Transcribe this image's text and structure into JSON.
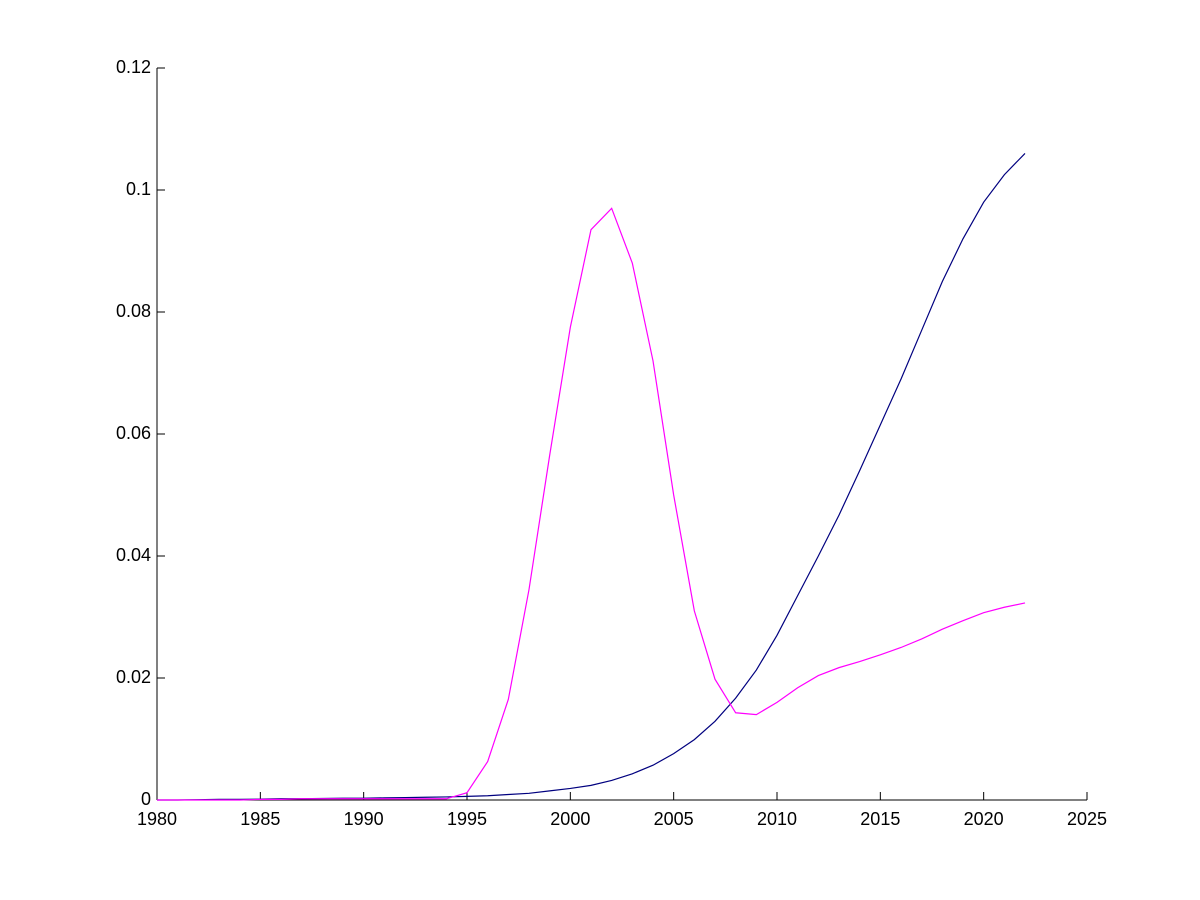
{
  "chart_data": {
    "type": "line",
    "x": [
      1980,
      1981,
      1982,
      1983,
      1984,
      1985,
      1986,
      1987,
      1988,
      1989,
      1990,
      1991,
      1992,
      1993,
      1994,
      1995,
      1996,
      1997,
      1998,
      1999,
      2000,
      2001,
      2002,
      2003,
      2004,
      2005,
      2006,
      2007,
      2008,
      2009,
      2010,
      2011,
      2012,
      2013,
      2014,
      2015,
      2016,
      2017,
      2018,
      2019,
      2020,
      2021,
      2022
    ],
    "series": [
      {
        "color": "#00007f",
        "values": [
          0,
          0,
          5e-05,
          0.0001,
          0.0001,
          0.00015,
          0.0002,
          0.0002,
          0.00025,
          0.0003,
          0.0003,
          0.00035,
          0.0004,
          0.00045,
          0.0005,
          0.0006,
          0.0007,
          0.0009,
          0.0011,
          0.0015,
          0.0019,
          0.0024,
          0.0032,
          0.0043,
          0.0057,
          0.0076,
          0.0099,
          0.0129,
          0.0167,
          0.0213,
          0.027,
          0.0335,
          0.04,
          0.0467,
          0.054,
          0.0615,
          0.069,
          0.077,
          0.085,
          0.092,
          0.098,
          0.1025,
          0.106
        ]
      },
      {
        "color": "#ff00ff",
        "values": [
          0,
          0,
          0,
          0,
          0,
          0.0001,
          0.0001,
          0.0002,
          0.0002,
          0.0002,
          0.0002,
          0.0002,
          0.0002,
          0.0002,
          0.0002,
          0.0012,
          0.0063,
          0.0165,
          0.0345,
          0.0565,
          0.0775,
          0.0935,
          0.097,
          0.088,
          0.072,
          0.05,
          0.031,
          0.0198,
          0.0143,
          0.014,
          0.016,
          0.0184,
          0.0204,
          0.0217,
          0.0227,
          0.0238,
          0.025,
          0.0264,
          0.028,
          0.0294,
          0.0307,
          0.0316,
          0.0323
        ]
      }
    ],
    "xlim": [
      1980,
      2025
    ],
    "xticks": [
      1980,
      1985,
      1990,
      1995,
      2000,
      2005,
      2010,
      2015,
      2020,
      2025
    ],
    "ylim": [
      0,
      0.12
    ],
    "yticks": [
      0,
      0.02,
      0.04,
      0.06,
      0.08,
      0.1,
      0.12
    ]
  }
}
